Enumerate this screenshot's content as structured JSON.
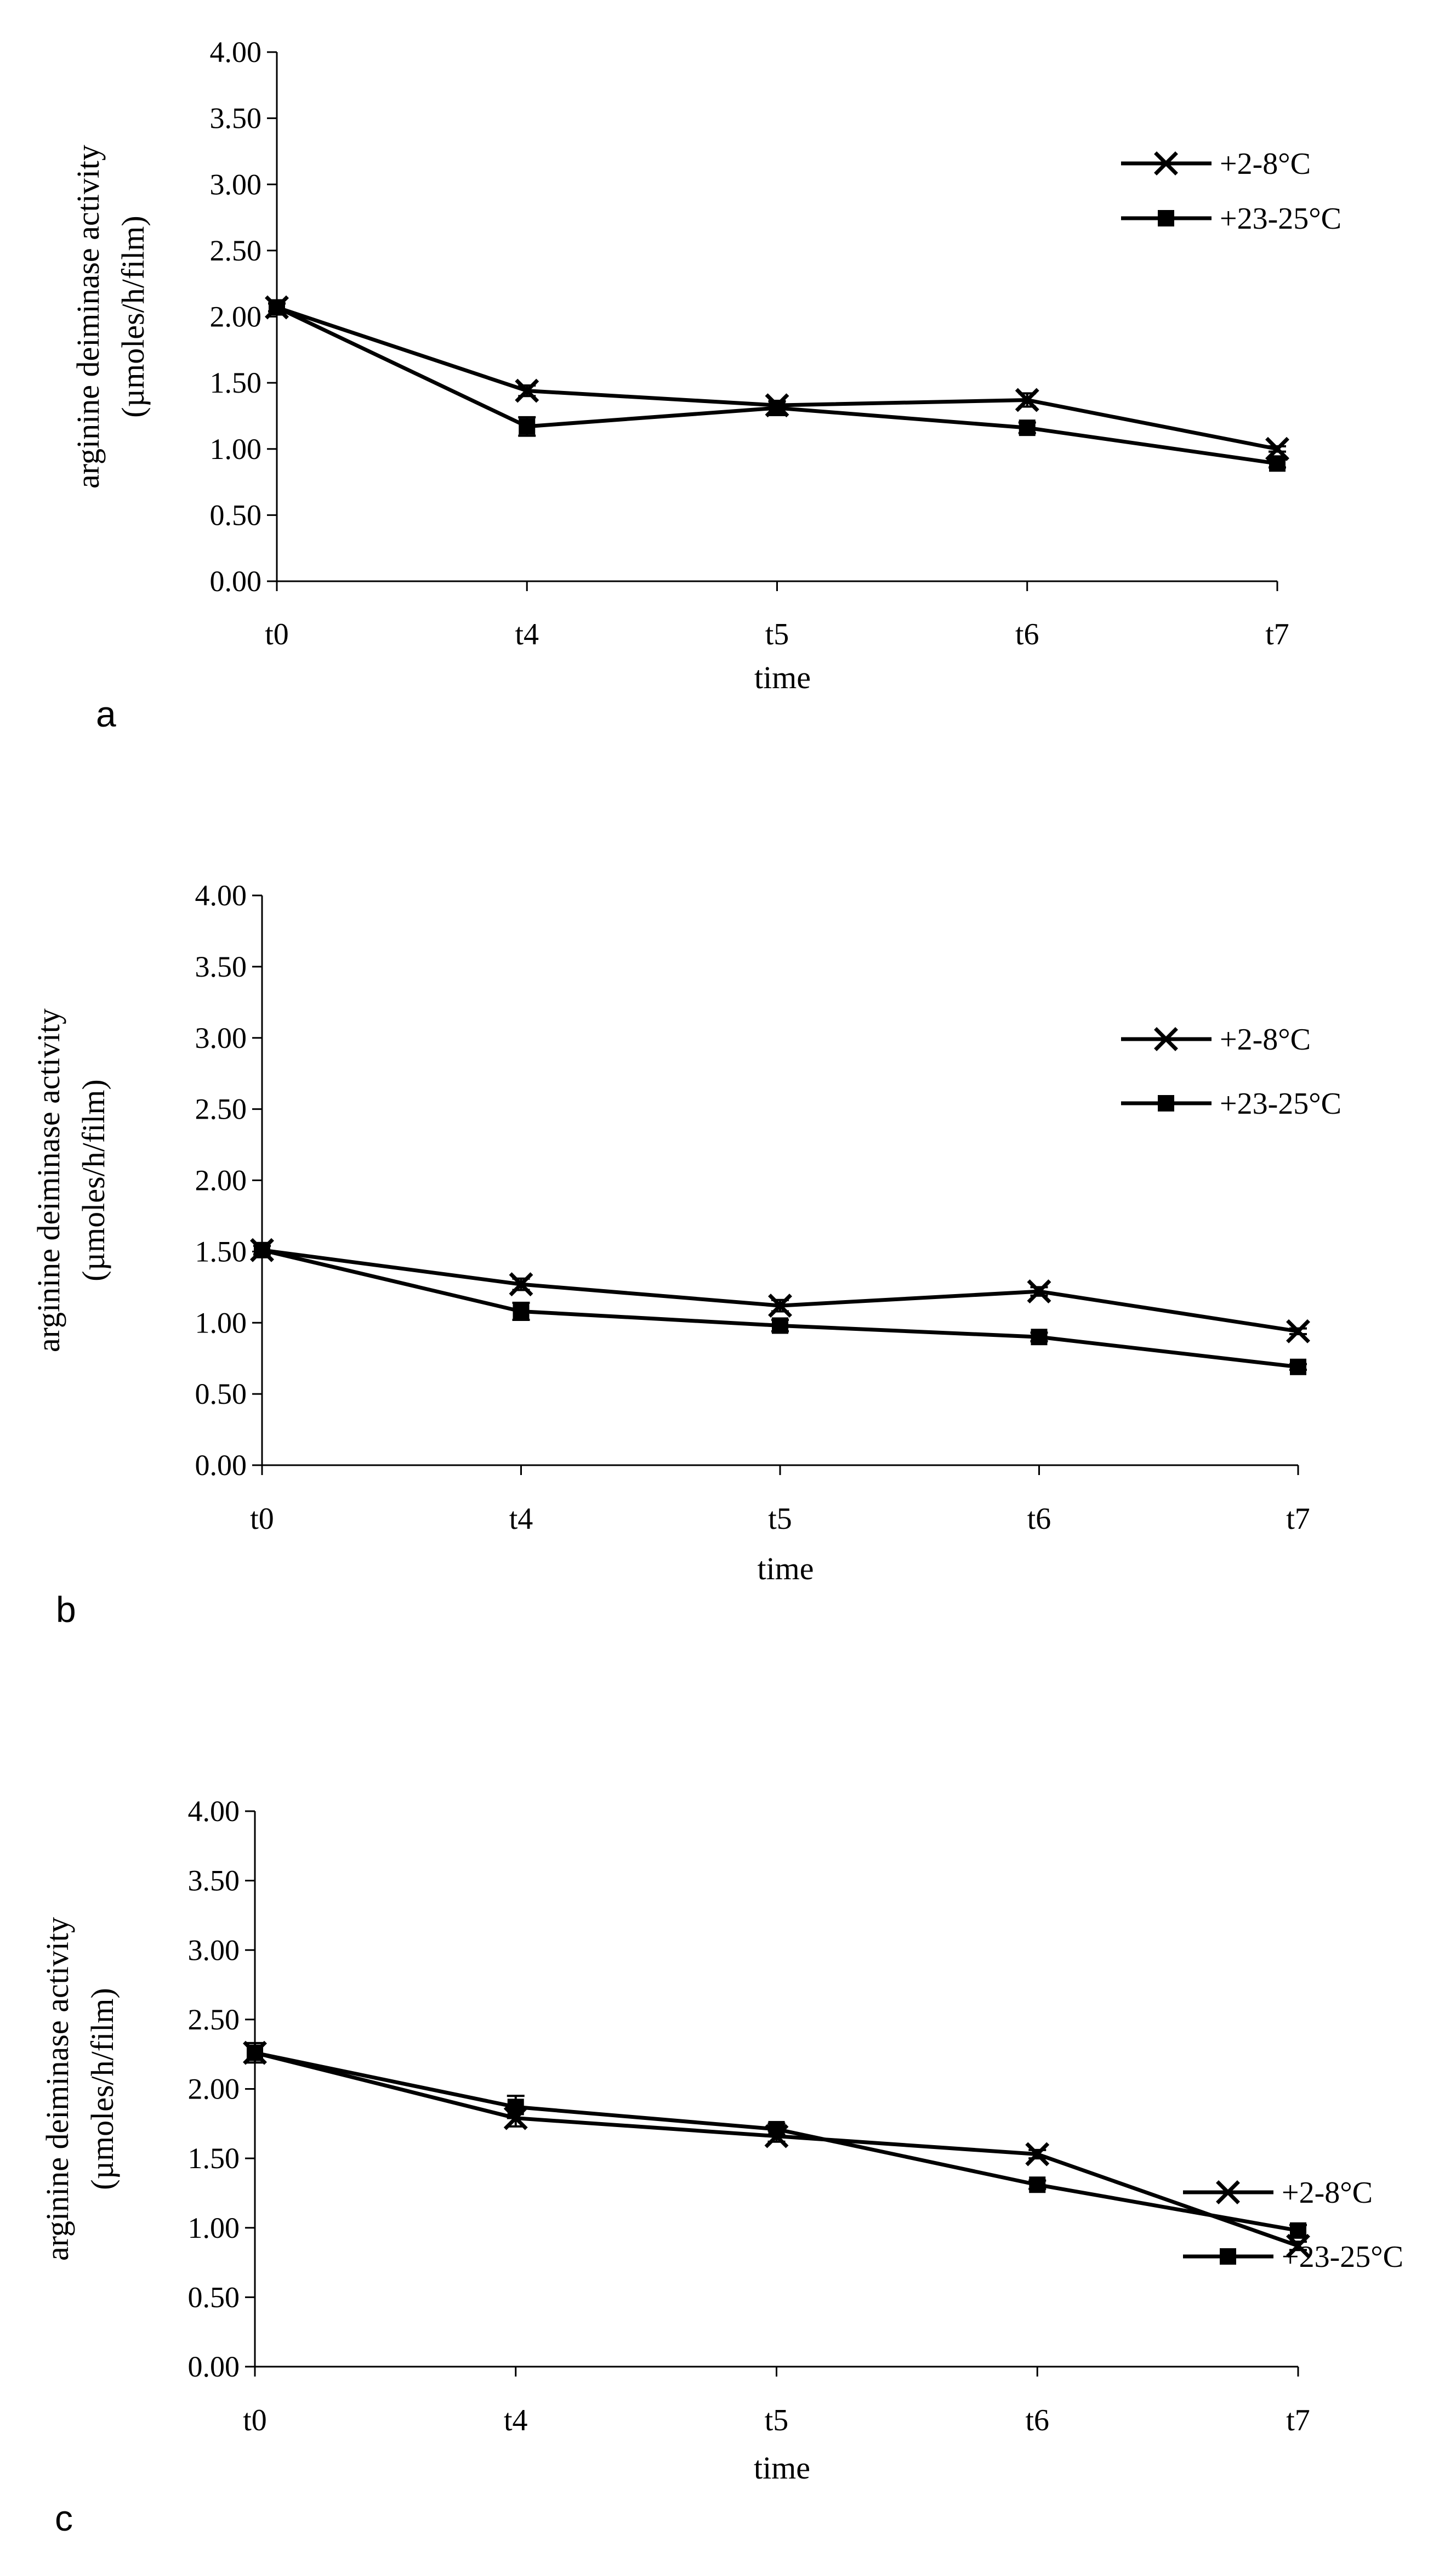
{
  "chart_data": [
    {
      "panel_label": "a",
      "type": "line",
      "categories": [
        "t0",
        "t4",
        "t5",
        "t6",
        "t7"
      ],
      "xlabel": "time",
      "ylabel_line1": "arginine deiminase activity",
      "ylabel_line2": "(µmoles/h/film)",
      "ylim": [
        0,
        4
      ],
      "yticks": [
        "0.00",
        "0.50",
        "1.00",
        "1.50",
        "2.00",
        "2.50",
        "3.00",
        "3.50",
        "4.00"
      ],
      "legend_position": "top-right",
      "series": [
        {
          "name": "+2-8°C",
          "marker": "x",
          "values": [
            2.07,
            1.44,
            1.33,
            1.37,
            1.0
          ],
          "errors": [
            0.03,
            0.04,
            0.03,
            0.05,
            0.02
          ]
        },
        {
          "name": "+23-25°C",
          "marker": "square",
          "values": [
            2.07,
            1.17,
            1.31,
            1.16,
            0.89
          ],
          "errors": [
            0.03,
            0.07,
            0.05,
            0.04,
            0.03
          ]
        }
      ]
    },
    {
      "panel_label": "b",
      "type": "line",
      "categories": [
        "t0",
        "t4",
        "t5",
        "t6",
        "t7"
      ],
      "xlabel": "time",
      "ylabel_line1": "arginine deiminase activity",
      "ylabel_line2": "(µmoles/h/film)",
      "ylim": [
        0,
        4
      ],
      "yticks": [
        "0.00",
        "0.50",
        "1.00",
        "1.50",
        "2.00",
        "2.50",
        "3.00",
        "3.50",
        "4.00"
      ],
      "legend_position": "top-right",
      "series": [
        {
          "name": "+2-8°C",
          "marker": "x",
          "values": [
            1.51,
            1.27,
            1.12,
            1.22,
            0.94
          ],
          "errors": [
            0.03,
            0.04,
            0.04,
            0.03,
            0.02
          ]
        },
        {
          "name": "+23-25°C",
          "marker": "square",
          "values": [
            1.51,
            1.08,
            0.98,
            0.9,
            0.69
          ],
          "errors": [
            0.03,
            0.06,
            0.04,
            0.03,
            0.02
          ]
        }
      ]
    },
    {
      "panel_label": "c",
      "type": "line",
      "categories": [
        "t0",
        "t4",
        "t5",
        "t6",
        "t7"
      ],
      "xlabel": "time",
      "ylabel_line1": "arginine deiminase activity",
      "ylabel_line2": "(µmoles/h/film)",
      "ylim": [
        0,
        4
      ],
      "yticks": [
        "0.00",
        "0.50",
        "1.00",
        "1.50",
        "2.00",
        "2.50",
        "3.00",
        "3.50",
        "4.00"
      ],
      "legend_position": "top-right",
      "series": [
        {
          "name": "+2-8°C",
          "marker": "x",
          "values": [
            2.26,
            1.79,
            1.66,
            1.53,
            0.87
          ],
          "errors": [
            0.05,
            0.06,
            0.04,
            0.03,
            0.03
          ]
        },
        {
          "name": "+23-25°C",
          "marker": "square",
          "values": [
            2.26,
            1.87,
            1.71,
            1.31,
            0.98
          ],
          "errors": [
            0.07,
            0.08,
            0.04,
            0.03,
            0.04
          ]
        }
      ]
    }
  ],
  "colors": {
    "line": "#000000",
    "background": "#ffffff"
  }
}
